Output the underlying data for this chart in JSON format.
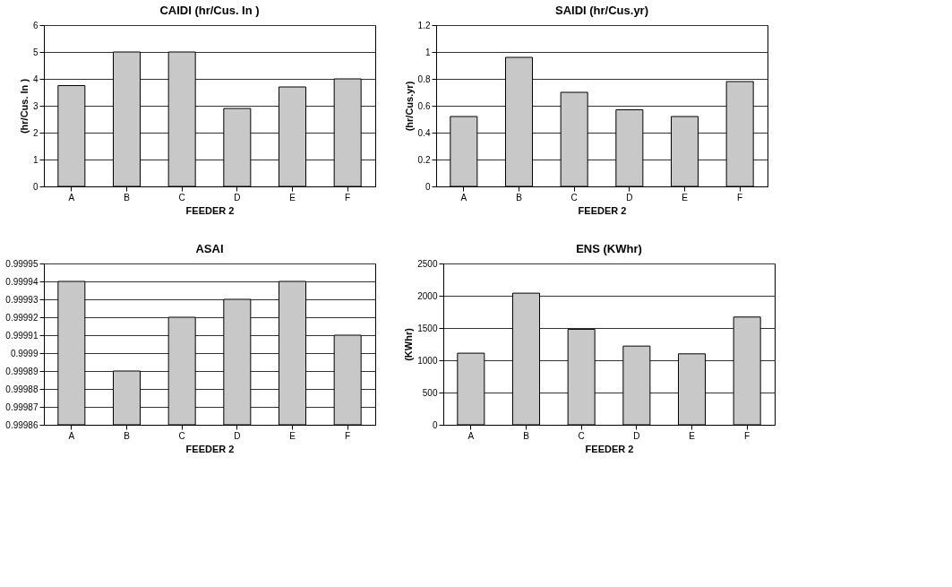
{
  "chart_data": [
    {
      "type": "bar",
      "title": "CAIDI (hr/Cus. In )",
      "xlabel": "FEEDER 2",
      "ylabel": "(hr/Cus. In )",
      "categories": [
        "A",
        "B",
        "C",
        "D",
        "E",
        "F"
      ],
      "values": [
        3.75,
        5.0,
        5.0,
        2.9,
        3.7,
        4.0
      ],
      "color": "#c8c8c8",
      "ylim": [
        0,
        6
      ],
      "yticks": [
        0,
        1,
        2,
        3,
        4,
        5,
        6
      ],
      "grid": "y"
    },
    {
      "type": "bar",
      "title": "SAIDI (hr/Cus.yr)",
      "xlabel": "FEEDER 2",
      "ylabel": "(hr/Cus.yr)",
      "categories": [
        "A",
        "B",
        "C",
        "D",
        "E",
        "F"
      ],
      "values": [
        0.52,
        0.96,
        0.7,
        0.57,
        0.52,
        0.78
      ],
      "color": "#c8c8c8",
      "ylim": [
        0,
        1.2
      ],
      "yticks": [
        0,
        0.2,
        0.4,
        0.6,
        0.8,
        1,
        1.2
      ],
      "grid": "y"
    },
    {
      "type": "bar",
      "title": "ASAI",
      "xlabel": "FEEDER 2",
      "categories": [
        "A",
        "B",
        "C",
        "D",
        "E",
        "F"
      ],
      "values": [
        0.99994,
        0.99989,
        0.99992,
        0.99993,
        0.99994,
        0.99991
      ],
      "color": "#c8c8c8",
      "ylim": [
        0.99986,
        0.99995
      ],
      "yticks": [
        0.99986,
        0.99987,
        0.99988,
        0.99989,
        0.9999,
        0.99991,
        0.99992,
        0.99993,
        0.99994,
        0.99995
      ],
      "grid": "y"
    },
    {
      "type": "bar",
      "title": "ENS (KWhr)",
      "xlabel": "FEEDER 2",
      "ylabel": "(KWhr)",
      "categories": [
        "A",
        "B",
        "C",
        "D",
        "E",
        "F"
      ],
      "values": [
        1110,
        2040,
        1480,
        1220,
        1100,
        1670
      ],
      "color": "#c8c8c8",
      "ylim": [
        0,
        2500
      ],
      "yticks": [
        0,
        500,
        1000,
        1500,
        2000,
        2500
      ],
      "grid": "y"
    }
  ]
}
